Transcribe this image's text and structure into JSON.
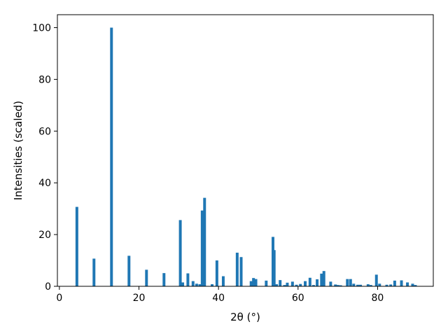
{
  "chart_data": {
    "type": "bar",
    "title": "",
    "xlabel": "2θ (°)",
    "ylabel": "Intensities (scaled)",
    "xlim": [
      -0.5,
      94.0
    ],
    "ylim": [
      0,
      105
    ],
    "xticks": [
      0,
      20,
      40,
      60,
      80
    ],
    "yticks": [
      0,
      20,
      40,
      60,
      80,
      100
    ],
    "bar_width": 0.7,
    "color": "#1f77b4",
    "grid": false,
    "x": [
      4.4,
      8.7,
      13.1,
      17.5,
      21.9,
      26.3,
      30.4,
      31.0,
      32.3,
      33.6,
      34.5,
      35.3,
      35.9,
      36.5,
      38.4,
      39.6,
      41.2,
      44.7,
      45.7,
      48.2,
      48.8,
      49.4,
      52.0,
      53.7,
      54.0,
      54.6,
      55.5,
      56.6,
      57.3,
      58.6,
      59.6,
      60.6,
      61.8,
      63.0,
      63.9,
      64.8,
      65.9,
      66.5,
      68.2,
      69.4,
      70.0,
      70.7,
      72.4,
      73.2,
      74.0,
      75.0,
      75.7,
      77.6,
      78.3,
      79.7,
      80.5,
      82.3,
      83.3,
      84.3,
      86.0,
      87.5,
      88.8,
      89.5
    ],
    "values": [
      30.7,
      10.7,
      100,
      11.8,
      6.4,
      5.1,
      25.6,
      1.5,
      5.0,
      2.0,
      1.0,
      0.8,
      29.3,
      34.2,
      0.8,
      10.0,
      3.9,
      13.0,
      11.3,
      2.0,
      3.2,
      2.8,
      2.2,
      19.1,
      14.0,
      0.8,
      2.4,
      0.5,
      1.4,
      1.8,
      0.6,
      0.9,
      2.0,
      3.3,
      0.5,
      2.7,
      4.9,
      5.9,
      1.8,
      0.7,
      0.5,
      0.4,
      2.8,
      2.8,
      1.0,
      0.6,
      0.6,
      0.8,
      0.5,
      4.5,
      1.0,
      0.6,
      0.7,
      2.2,
      2.3,
      1.5,
      1.0,
      0.5
    ]
  }
}
